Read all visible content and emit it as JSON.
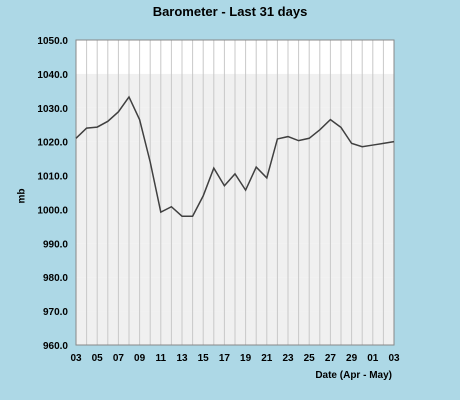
{
  "chart_data": {
    "type": "line",
    "title": "Barometer - Last 31 days",
    "xlabel": "Date (Apr - May)",
    "ylabel": "mb",
    "ylim": [
      960.0,
      1050.0
    ],
    "yticks": [
      "960.0",
      "970.0",
      "980.0",
      "990.0",
      "1000.0",
      "1010.0",
      "1020.0",
      "1030.0",
      "1040.0",
      "1050.0"
    ],
    "xticks": [
      "03",
      "05",
      "07",
      "09",
      "11",
      "13",
      "15",
      "17",
      "19",
      "21",
      "23",
      "25",
      "27",
      "29",
      "01",
      "03"
    ],
    "grid": true,
    "series": [
      {
        "name": "",
        "x": [
          0,
          1,
          2,
          3,
          4,
          5,
          6,
          7,
          8,
          9,
          10,
          11,
          12,
          13,
          14,
          15,
          16,
          17,
          18,
          19,
          20,
          21,
          22,
          23,
          24,
          25,
          26,
          27,
          28,
          29,
          30
        ],
        "values": [
          1021.0,
          1024.0,
          1024.3,
          1026.0,
          1028.8,
          1033.2,
          1026.5,
          1014.0,
          999.2,
          1000.8,
          998.0,
          998.0,
          1004.0,
          1012.2,
          1007.0,
          1010.5,
          1005.7,
          1012.5,
          1009.3,
          1020.8,
          1021.5,
          1020.3,
          1021.0,
          1023.5,
          1026.5,
          1024.2,
          1019.5,
          1018.5,
          1019.0,
          1019.5,
          1020.0
        ]
      }
    ]
  },
  "colors": {
    "background": "#add8e6",
    "plot_background": "#ffffff",
    "band": "#f0f0f0",
    "gridline": "#c8c8c8",
    "line": "#404040"
  }
}
